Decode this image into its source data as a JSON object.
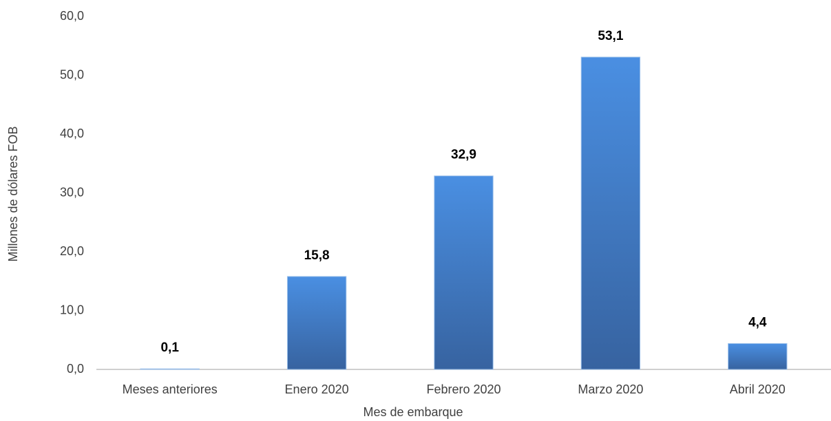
{
  "chart_data": {
    "type": "bar",
    "categories": [
      "Meses anteriores",
      "Enero 2020",
      "Febrero 2020",
      "Marzo 2020",
      "Abril 2020"
    ],
    "values": [
      0.1,
      15.8,
      32.9,
      53.1,
      4.4
    ],
    "value_labels": [
      "0,1",
      "15,8",
      "32,9",
      "53,1",
      "4,4"
    ],
    "color": "#4485d6",
    "x_label": "Mes de embarque",
    "y_label": "Millones de dólares FOB",
    "ylim": [
      0,
      60
    ],
    "yticks": [
      {
        "value": 0,
        "label": "0,0"
      },
      {
        "value": 10,
        "label": "10,0"
      },
      {
        "value": 20,
        "label": "20,0"
      },
      {
        "value": 30,
        "label": "30,0"
      },
      {
        "value": 40,
        "label": "40,0"
      },
      {
        "value": 50,
        "label": "50,0"
      },
      {
        "value": 60,
        "label": "60,0"
      }
    ],
    "grid": false
  }
}
